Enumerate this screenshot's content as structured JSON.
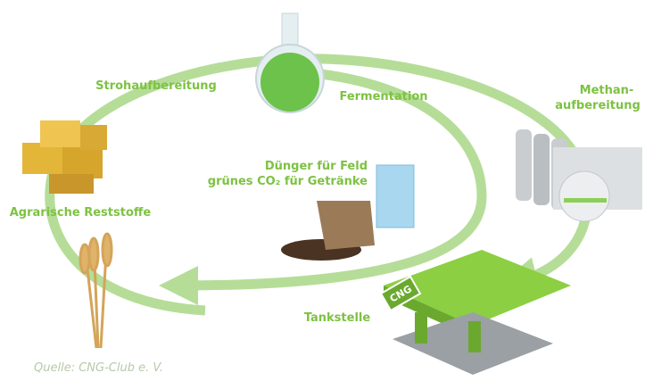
{
  "nodes": [
    {
      "label": "Strohaufbereitung"
    },
    {
      "label": "Fermentation"
    },
    {
      "label_lines": [
        "Methan-",
        "aufbereitung"
      ]
    },
    {
      "label_lines": [
        "Dünger für Feld",
        "grünes CO₂ für Getränke"
      ]
    },
    {
      "label": "Agrarische Reststoffe"
    },
    {
      "label": "Tankstelle"
    }
  ],
  "sign": "CNG",
  "source": "Quelle: CNG-Club e. V."
}
